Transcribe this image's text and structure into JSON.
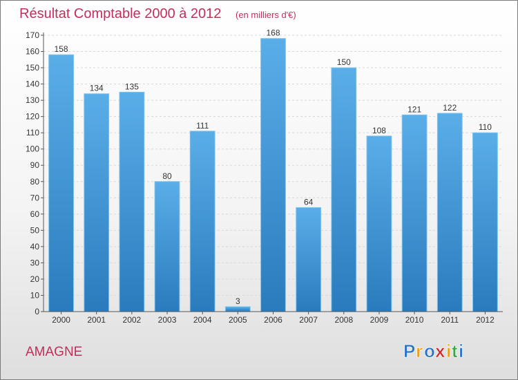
{
  "chart_data": {
    "type": "bar",
    "title": "Résultat Comptable 2000 à 2012",
    "subtitle": "(en milliers d'€)",
    "categories": [
      "2000",
      "2001",
      "2002",
      "2003",
      "2004",
      "2005",
      "2006",
      "2007",
      "2008",
      "2009",
      "2010",
      "2011",
      "2012"
    ],
    "values": [
      158,
      134,
      135,
      80,
      111,
      3,
      168,
      64,
      150,
      108,
      121,
      122,
      110
    ],
    "ylim": [
      0,
      170
    ],
    "yticks": [
      0,
      10,
      20,
      30,
      40,
      50,
      60,
      70,
      80,
      90,
      100,
      110,
      120,
      130,
      140,
      150,
      160,
      170
    ],
    "grid": true,
    "xlabel": "",
    "ylabel": ""
  },
  "commune": "AMAGNE",
  "brand": {
    "letters": [
      "P",
      "r",
      "o",
      "x",
      "i",
      "t",
      "i"
    ],
    "colors": [
      "#2a74c5",
      "#e8a021",
      "#2a74c5",
      "#cc2a2a",
      "#e8a021",
      "#3aa547",
      "#2a74c5"
    ]
  },
  "colors": {
    "title": "#c0305a",
    "bar_top": "#5aaee8",
    "bar_bottom": "#2a7bbd",
    "axis_text": "#333333"
  }
}
